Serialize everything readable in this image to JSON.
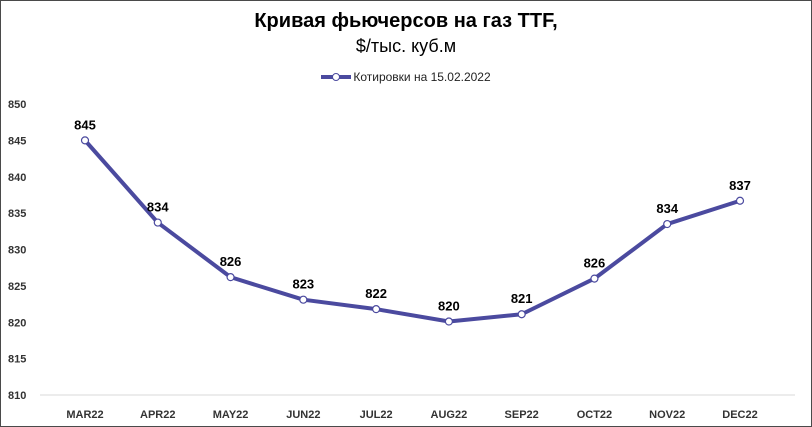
{
  "chart_data": {
    "type": "line",
    "title": "Кривая фьючерсов на газ TTF,",
    "subtitle": "$/тыс. куб.м",
    "categories": [
      "MAR22",
      "APR22",
      "MAY22",
      "JUN22",
      "JUL22",
      "AUG22",
      "SEP22",
      "OCT22",
      "NOV22",
      "DEC22"
    ],
    "series": [
      {
        "name": "Котировки на 15.02.2022",
        "values": [
          845,
          833.7,
          826.2,
          823.1,
          821.8,
          820.1,
          821.1,
          826,
          833.5,
          836.7
        ],
        "labels": [
          "845",
          "834",
          "826",
          "823",
          "822",
          "820",
          "821",
          "826",
          "834",
          "837"
        ],
        "color": "#4b4a9f"
      }
    ],
    "ylim": [
      810,
      850
    ],
    "yticks": [
      "850",
      "845",
      "840",
      "835",
      "830",
      "825",
      "820",
      "815",
      "810"
    ],
    "legend_position": "top-center",
    "grid": false
  }
}
